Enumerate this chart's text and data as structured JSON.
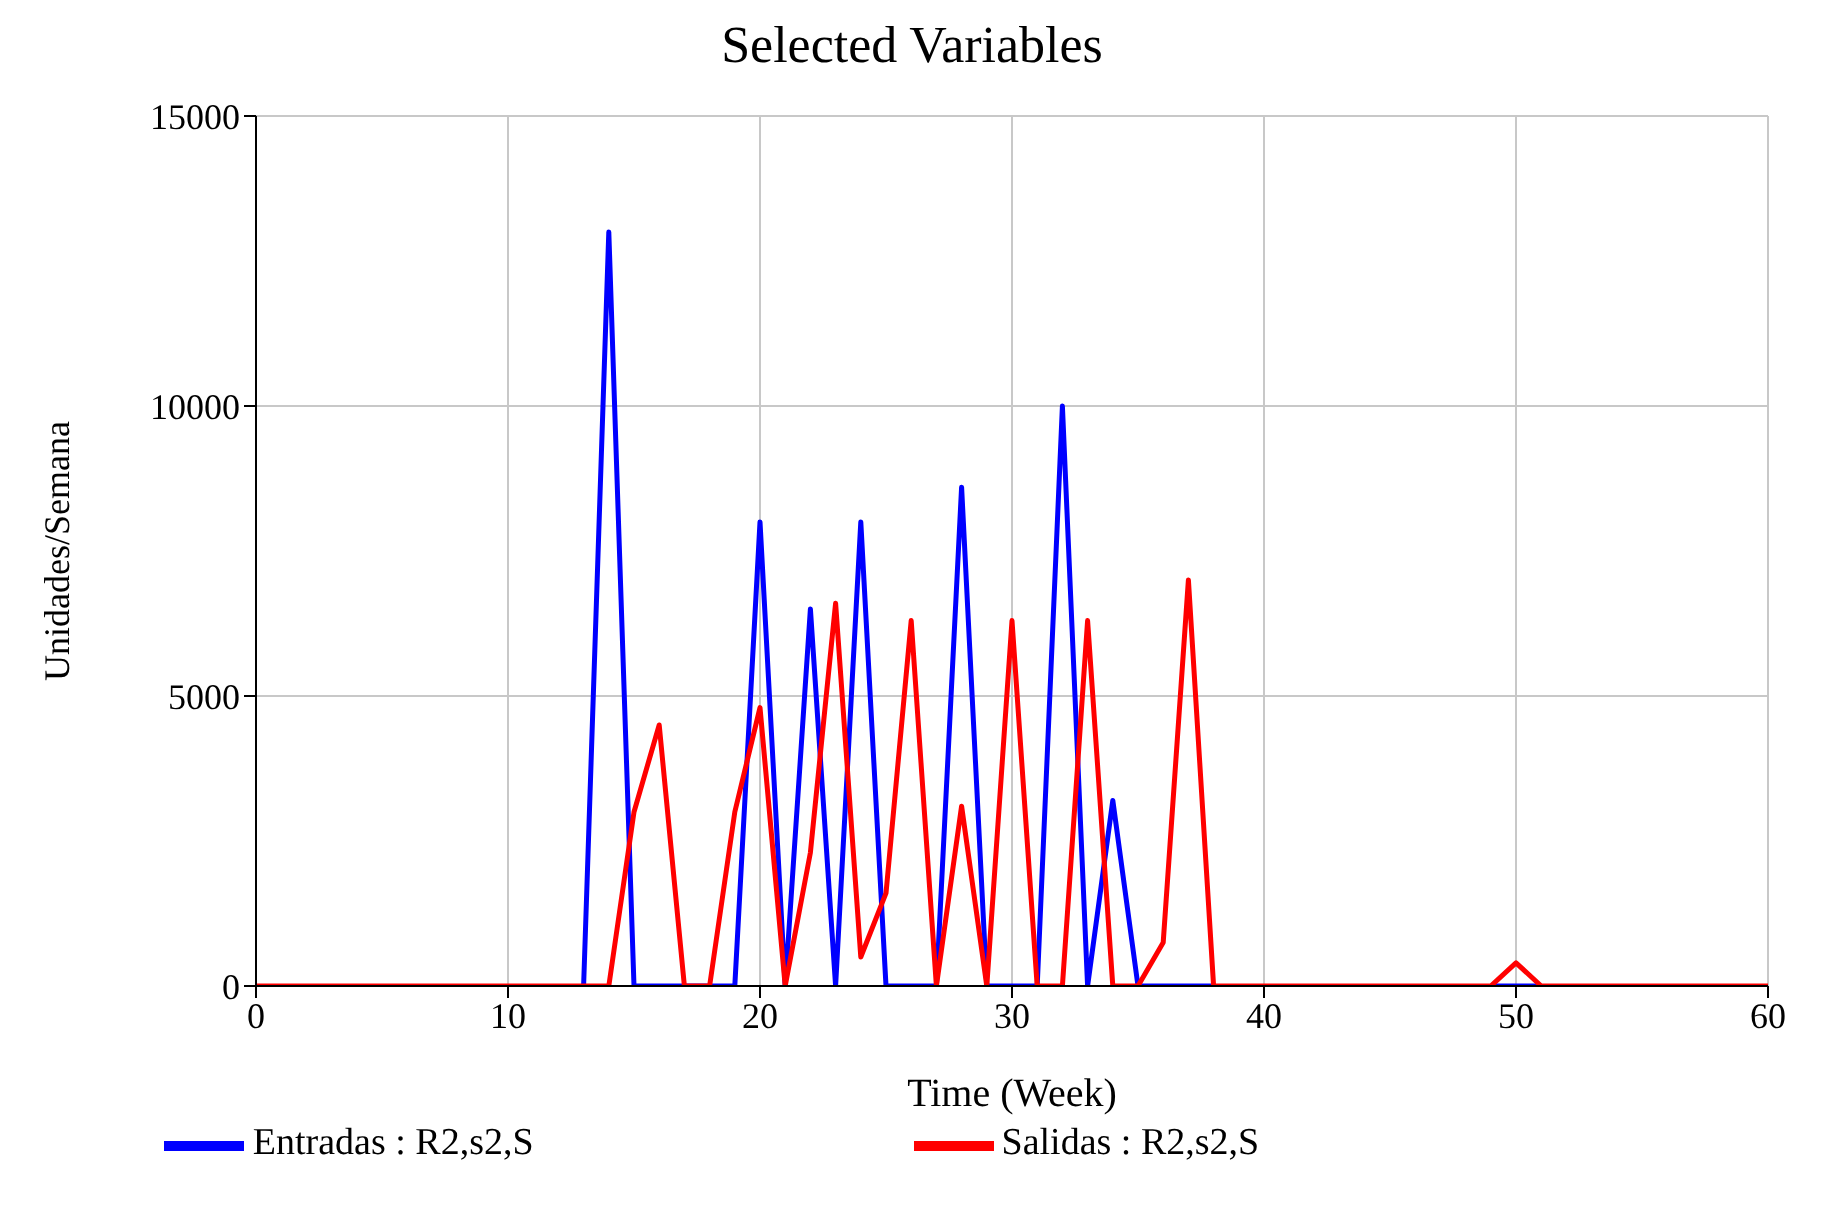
{
  "chart_data": {
    "type": "line",
    "title": "Selected Variables",
    "xlabel": "Time (Week)",
    "ylabel": "Unidades/Semana",
    "x": [
      0,
      1,
      2,
      3,
      4,
      5,
      6,
      7,
      8,
      9,
      10,
      11,
      12,
      13,
      14,
      15,
      16,
      17,
      18,
      19,
      20,
      21,
      22,
      23,
      24,
      25,
      26,
      27,
      28,
      29,
      30,
      31,
      32,
      33,
      34,
      35,
      36,
      37,
      38,
      39,
      40,
      41,
      42,
      43,
      44,
      45,
      46,
      47,
      48,
      49,
      50,
      51,
      52,
      53,
      54,
      55,
      56,
      57,
      58,
      59,
      60
    ],
    "series": [
      {
        "name": "Entradas : R2,s2,S",
        "color": "#0000ff",
        "values": [
          null,
          null,
          null,
          null,
          null,
          null,
          null,
          null,
          null,
          null,
          null,
          null,
          null,
          0,
          13000,
          0,
          0,
          0,
          0,
          0,
          8000,
          0,
          6500,
          0,
          8000,
          0,
          0,
          0,
          8600,
          0,
          0,
          0,
          10000,
          0,
          3200,
          0,
          0,
          0,
          0,
          null,
          null,
          null,
          null,
          null,
          null,
          null,
          null,
          null,
          null,
          0,
          0,
          0,
          null,
          null,
          null,
          null,
          null,
          null,
          null,
          null,
          null
        ]
      },
      {
        "name": "Salidas : R2,s2,S",
        "color": "#ff0000",
        "values": [
          0,
          0,
          0,
          0,
          0,
          0,
          0,
          0,
          0,
          0,
          0,
          0,
          0,
          0,
          0,
          3000,
          4500,
          0,
          0,
          3000,
          4800,
          0,
          2300,
          6600,
          500,
          1600,
          6300,
          0,
          3100,
          0,
          6300,
          0,
          0,
          6300,
          0,
          0,
          750,
          7000,
          0,
          0,
          0,
          0,
          0,
          0,
          0,
          0,
          0,
          0,
          0,
          0,
          400,
          0,
          0,
          0,
          0,
          0,
          0,
          0,
          0,
          0,
          0
        ]
      }
    ],
    "xlim": [
      0,
      60
    ],
    "xticks": [
      0,
      10,
      20,
      30,
      40,
      50,
      60
    ],
    "ylim": [
      0,
      15000
    ],
    "yticks": [
      0,
      5000,
      10000,
      15000
    ],
    "grid": true,
    "legend": "bottom",
    "marker": "none",
    "line_style": "solid"
  }
}
